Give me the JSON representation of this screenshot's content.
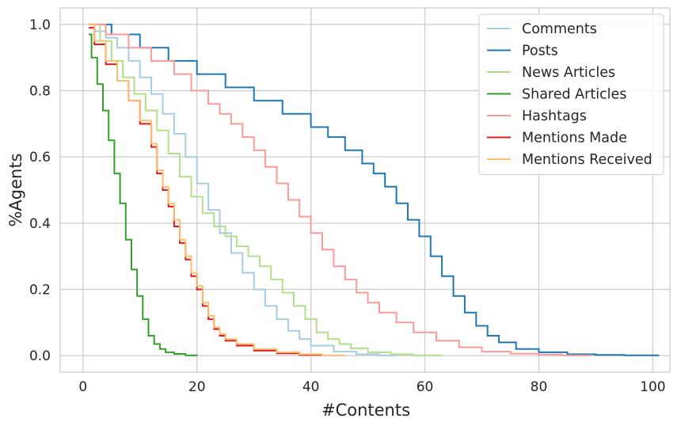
{
  "chart_data": {
    "type": "line",
    "step": true,
    "title": "",
    "xlabel": "#Contents",
    "ylabel": "%Agents",
    "xlim": [
      -4,
      103
    ],
    "ylim": [
      -0.05,
      1.05
    ],
    "xticks": [
      0,
      20,
      40,
      60,
      80,
      100
    ],
    "yticks": [
      0.0,
      0.2,
      0.4,
      0.6,
      0.8,
      1.0
    ],
    "xtick_labels": [
      "0",
      "20",
      "40",
      "60",
      "80",
      "100"
    ],
    "ytick_labels": [
      "0.0",
      "0.2",
      "0.4",
      "0.6",
      "0.8",
      "1.0"
    ],
    "grid": true,
    "legend_position": "top-right",
    "series": [
      {
        "name": "Comments",
        "color": "#a6cee3",
        "points": [
          [
            1,
            1.0
          ],
          [
            2,
            0.98
          ],
          [
            4,
            0.96
          ],
          [
            6,
            0.93
          ],
          [
            8,
            0.89
          ],
          [
            10,
            0.84
          ],
          [
            12,
            0.79
          ],
          [
            14,
            0.73
          ],
          [
            16,
            0.67
          ],
          [
            18,
            0.6
          ],
          [
            20,
            0.52
          ],
          [
            22,
            0.44
          ],
          [
            24,
            0.37
          ],
          [
            26,
            0.31
          ],
          [
            28,
            0.25
          ],
          [
            30,
            0.2
          ],
          [
            32,
            0.15
          ],
          [
            34,
            0.11
          ],
          [
            36,
            0.075
          ],
          [
            38,
            0.05
          ],
          [
            40,
            0.03
          ],
          [
            44,
            0.012
          ],
          [
            48,
            0.004
          ],
          [
            52,
            0.001
          ],
          [
            55,
            0.0
          ]
        ]
      },
      {
        "name": "Posts",
        "color": "#1f78b4",
        "points": [
          [
            1,
            1.0
          ],
          [
            5,
            0.97
          ],
          [
            10,
            0.93
          ],
          [
            15,
            0.89
          ],
          [
            20,
            0.85
          ],
          [
            25,
            0.81
          ],
          [
            30,
            0.77
          ],
          [
            35,
            0.73
          ],
          [
            40,
            0.69
          ],
          [
            43,
            0.66
          ],
          [
            46,
            0.62
          ],
          [
            49,
            0.58
          ],
          [
            51,
            0.55
          ],
          [
            53,
            0.51
          ],
          [
            55,
            0.46
          ],
          [
            57,
            0.41
          ],
          [
            59,
            0.36
          ],
          [
            61,
            0.3
          ],
          [
            63,
            0.24
          ],
          [
            65,
            0.18
          ],
          [
            67,
            0.13
          ],
          [
            69,
            0.09
          ],
          [
            71,
            0.06
          ],
          [
            73,
            0.04
          ],
          [
            76,
            0.02
          ],
          [
            80,
            0.01
          ],
          [
            85,
            0.004
          ],
          [
            90,
            0.002
          ],
          [
            95,
            0.001
          ],
          [
            101,
            0.0
          ]
        ]
      },
      {
        "name": "News Articles",
        "color": "#b2df8a",
        "points": [
          [
            1,
            1.0
          ],
          [
            3,
            0.95
          ],
          [
            5,
            0.89
          ],
          [
            7,
            0.84
          ],
          [
            9,
            0.79
          ],
          [
            11,
            0.74
          ],
          [
            13,
            0.68
          ],
          [
            15,
            0.61
          ],
          [
            17,
            0.54
          ],
          [
            19,
            0.48
          ],
          [
            21,
            0.43
          ],
          [
            23,
            0.39
          ],
          [
            25,
            0.36
          ],
          [
            27,
            0.33
          ],
          [
            29,
            0.3
          ],
          [
            31,
            0.27
          ],
          [
            33,
            0.23
          ],
          [
            35,
            0.19
          ],
          [
            37,
            0.15
          ],
          [
            39,
            0.11
          ],
          [
            41,
            0.07
          ],
          [
            43,
            0.05
          ],
          [
            45,
            0.035
          ],
          [
            47,
            0.022
          ],
          [
            50,
            0.01
          ],
          [
            54,
            0.004
          ],
          [
            58,
            0.001
          ],
          [
            63,
            0.0
          ]
        ]
      },
      {
        "name": "Shared Articles",
        "color": "#33a02c",
        "points": [
          [
            1,
            0.97
          ],
          [
            1.5,
            0.9
          ],
          [
            2.5,
            0.82
          ],
          [
            3.5,
            0.74
          ],
          [
            4.5,
            0.65
          ],
          [
            5.5,
            0.55
          ],
          [
            6.5,
            0.46
          ],
          [
            7.5,
            0.35
          ],
          [
            8.5,
            0.26
          ],
          [
            9.5,
            0.18
          ],
          [
            10.5,
            0.11
          ],
          [
            11.5,
            0.06
          ],
          [
            12.5,
            0.035
          ],
          [
            13.5,
            0.02
          ],
          [
            14.5,
            0.01
          ],
          [
            16,
            0.005
          ],
          [
            18,
            0.001
          ],
          [
            20,
            0.0
          ]
        ]
      },
      {
        "name": "Hashtags",
        "color": "#fb9a99",
        "points": [
          [
            1,
            1.0
          ],
          [
            4,
            0.97
          ],
          [
            8,
            0.93
          ],
          [
            12,
            0.89
          ],
          [
            16,
            0.85
          ],
          [
            19,
            0.8
          ],
          [
            22,
            0.76
          ],
          [
            24,
            0.73
          ],
          [
            26,
            0.7
          ],
          [
            28,
            0.66
          ],
          [
            30,
            0.62
          ],
          [
            32,
            0.57
          ],
          [
            34,
            0.52
          ],
          [
            36,
            0.47
          ],
          [
            38,
            0.42
          ],
          [
            40,
            0.37
          ],
          [
            42,
            0.32
          ],
          [
            44,
            0.27
          ],
          [
            46,
            0.23
          ],
          [
            48,
            0.19
          ],
          [
            50,
            0.16
          ],
          [
            52,
            0.13
          ],
          [
            55,
            0.1
          ],
          [
            58,
            0.07
          ],
          [
            62,
            0.045
          ],
          [
            66,
            0.025
          ],
          [
            70,
            0.012
          ],
          [
            75,
            0.006
          ],
          [
            80,
            0.003
          ],
          [
            84,
            0.001
          ],
          [
            89,
            0.0
          ]
        ]
      },
      {
        "name": "Mentions Made",
        "color": "#e31a1c",
        "points": [
          [
            1,
            0.99
          ],
          [
            2,
            0.94
          ],
          [
            4,
            0.88
          ],
          [
            6,
            0.83
          ],
          [
            8,
            0.77
          ],
          [
            10,
            0.7
          ],
          [
            12,
            0.63
          ],
          [
            13,
            0.55
          ],
          [
            14,
            0.5
          ],
          [
            15,
            0.45
          ],
          [
            16,
            0.39
          ],
          [
            17,
            0.34
          ],
          [
            18,
            0.29
          ],
          [
            19,
            0.24
          ],
          [
            20,
            0.2
          ],
          [
            21,
            0.15
          ],
          [
            22,
            0.11
          ],
          [
            23,
            0.08
          ],
          [
            24,
            0.06
          ],
          [
            25,
            0.045
          ],
          [
            27,
            0.03
          ],
          [
            30,
            0.015
          ],
          [
            34,
            0.007
          ],
          [
            38,
            0.002
          ],
          [
            42,
            0.0
          ]
        ]
      },
      {
        "name": "Mentions Received",
        "color": "#fdbf6f",
        "points": [
          [
            1,
            1.0
          ],
          [
            2,
            0.95
          ],
          [
            4,
            0.89
          ],
          [
            6,
            0.83
          ],
          [
            8,
            0.77
          ],
          [
            10,
            0.71
          ],
          [
            12,
            0.64
          ],
          [
            13,
            0.56
          ],
          [
            14,
            0.51
          ],
          [
            15,
            0.46
          ],
          [
            16,
            0.41
          ],
          [
            17,
            0.35
          ],
          [
            18,
            0.3
          ],
          [
            19,
            0.25
          ],
          [
            20,
            0.21
          ],
          [
            21,
            0.16
          ],
          [
            22,
            0.12
          ],
          [
            23,
            0.085
          ],
          [
            24,
            0.065
          ],
          [
            25,
            0.05
          ],
          [
            27,
            0.035
          ],
          [
            30,
            0.02
          ],
          [
            34,
            0.01
          ],
          [
            38,
            0.004
          ],
          [
            42,
            0.001
          ],
          [
            46,
            0.0
          ]
        ]
      }
    ]
  }
}
